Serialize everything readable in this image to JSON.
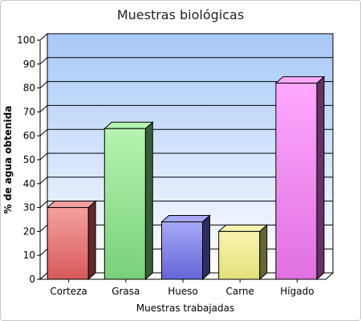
{
  "chart_data": {
    "type": "bar",
    "title": "Muestras biológicas",
    "xlabel": "Muestras trabajadas",
    "ylabel": "% de agua obtenida",
    "categories": [
      "Corteza",
      "Grasa",
      "Hueso",
      "Carne",
      "Hígado"
    ],
    "values": [
      30,
      63,
      24,
      20,
      82
    ],
    "ylim": [
      0,
      100
    ],
    "yticks": [
      0,
      10,
      20,
      30,
      40,
      50,
      60,
      70,
      80,
      90,
      100
    ],
    "grid": true,
    "legend": "none",
    "colors": {
      "bar_fronts": [
        "#d85a5a",
        "#7ad07a",
        "#6464d8",
        "#e4e078",
        "#e070e0"
      ],
      "bar_highlights": [
        "#f4a0a0",
        "#b4f4b0",
        "#a8a8f8",
        "#f8f4b0",
        "#ffa8ff"
      ],
      "plot_top": "#a8c8f8",
      "plot_bottom": "#ffffff"
    }
  }
}
